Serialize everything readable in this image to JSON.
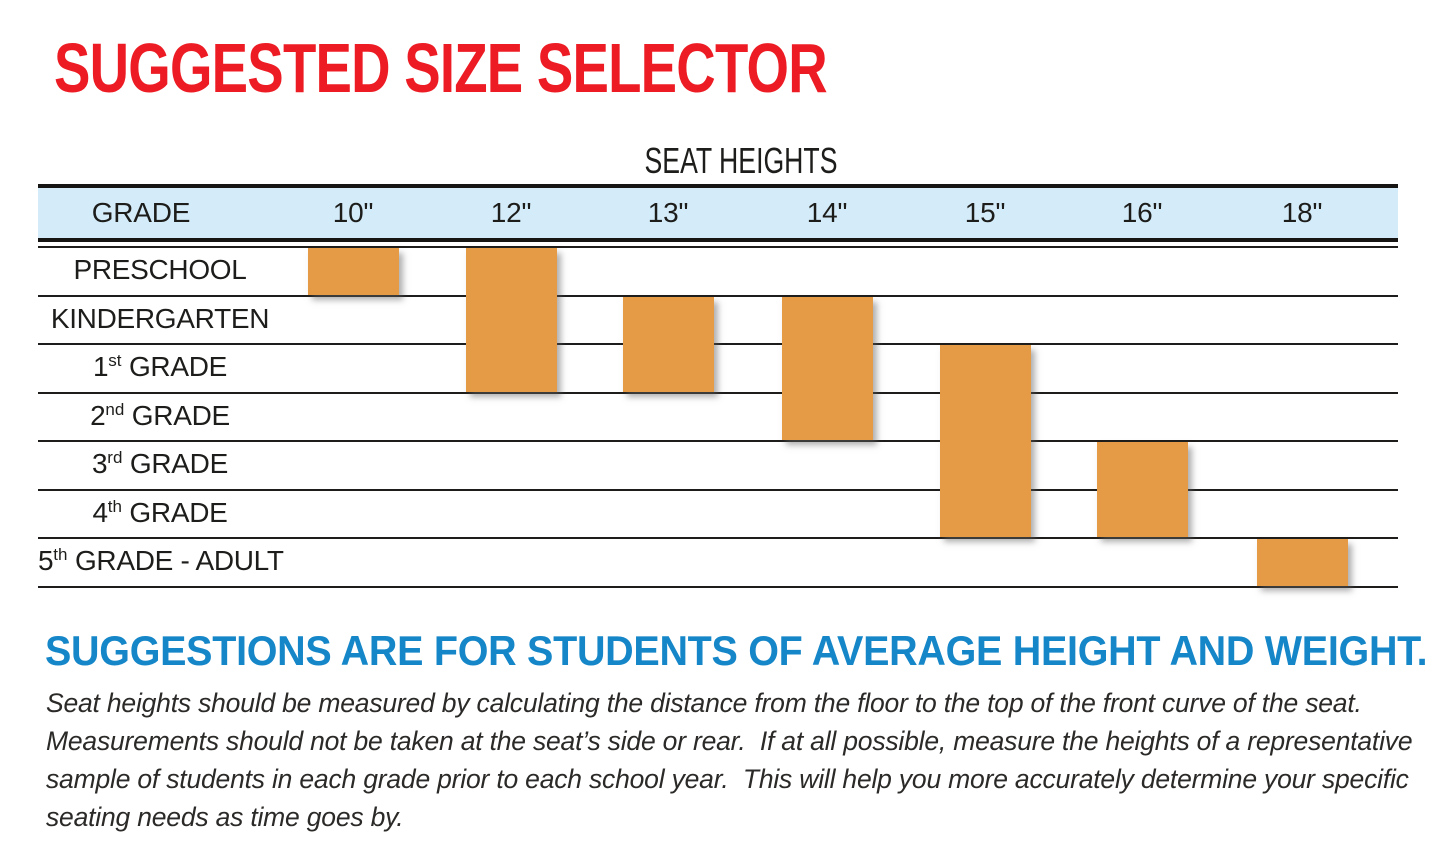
{
  "page_title": "SUGGESTED SIZE SELECTOR",
  "chart_heading": "SEAT HEIGHTS",
  "table": {
    "grade_column_header": "GRADE",
    "columns": [
      "10\"",
      "12\"",
      "13\"",
      "14\"",
      "15\"",
      "16\"",
      "18\""
    ],
    "grades": [
      {
        "prefix": "",
        "ordinal": "",
        "rest": "PRESCHOOL",
        "full": "PRESCHOOL"
      },
      {
        "prefix": "",
        "ordinal": "",
        "rest": "KINDERGARTEN",
        "full": "KINDERGARTEN"
      },
      {
        "prefix": "1",
        "ordinal": "st",
        "rest": " GRADE",
        "full": "1st GRADE"
      },
      {
        "prefix": "2",
        "ordinal": "nd",
        "rest": " GRADE",
        "full": "2nd GRADE"
      },
      {
        "prefix": "3",
        "ordinal": "rd",
        "rest": " GRADE",
        "full": "3rd GRADE"
      },
      {
        "prefix": "4",
        "ordinal": "th",
        "rest": " GRADE",
        "full": "4th GRADE"
      },
      {
        "prefix": "5",
        "ordinal": "th",
        "rest": " GRADE - ADULT",
        "full": "5th GRADE - ADULT"
      }
    ]
  },
  "chart_data": {
    "type": "bar",
    "subtype": "vertical range bars (Gantt-style size selector)",
    "title": "SEAT HEIGHTS",
    "x_categories": [
      "10\"",
      "12\"",
      "13\"",
      "14\"",
      "15\"",
      "16\"",
      "18\""
    ],
    "y_categories": [
      "PRESCHOOL",
      "KINDERGARTEN",
      "1st GRADE",
      "2nd GRADE",
      "3rd GRADE",
      "4th GRADE",
      "5th GRADE - ADULT"
    ],
    "bars": [
      {
        "seat_height": "10\"",
        "col": 0,
        "from_row": 0,
        "to_row": 0,
        "grade_range": "PRESCHOOL"
      },
      {
        "seat_height": "12\"",
        "col": 1,
        "from_row": 0,
        "to_row": 2,
        "grade_range": "PRESCHOOL to 1st GRADE"
      },
      {
        "seat_height": "13\"",
        "col": 2,
        "from_row": 1,
        "to_row": 2,
        "grade_range": "KINDERGARTEN to 1st GRADE"
      },
      {
        "seat_height": "14\"",
        "col": 3,
        "from_row": 1,
        "to_row": 3,
        "grade_range": "KINDERGARTEN to 2nd GRADE"
      },
      {
        "seat_height": "15\"",
        "col": 4,
        "from_row": 2,
        "to_row": 5,
        "grade_range": "1st GRADE to 4th GRADE"
      },
      {
        "seat_height": "16\"",
        "col": 5,
        "from_row": 4,
        "to_row": 5,
        "grade_range": "3rd GRADE to 4th GRADE"
      },
      {
        "seat_height": "18\"",
        "col": 6,
        "from_row": 6,
        "to_row": 6,
        "grade_range": "5th GRADE - ADULT"
      }
    ],
    "legend": "none",
    "grid": "horizontal row lines only"
  },
  "footnote": {
    "heading": "SUGGESTIONS ARE FOR STUDENTS OF AVERAGE HEIGHT AND WEIGHT.",
    "body_lines": [
      "Seat heights should be measured by calculating the distance from the floor to the top of the front curve of the seat.",
      "Measurements should not be taken at the seat’s side or rear.  If at all possible, measure the heights of a representative",
      "sample of students in each grade prior to each school year.  This will help you more accurately determine your specific",
      "seating needs as time goes by."
    ]
  },
  "colors": {
    "title_red": "#ed1c24",
    "header_bg": "#d4ecf9",
    "bar_orange": "#e59a45",
    "footnote_blue": "#1586c8",
    "line_black": "#1e1d1b"
  }
}
